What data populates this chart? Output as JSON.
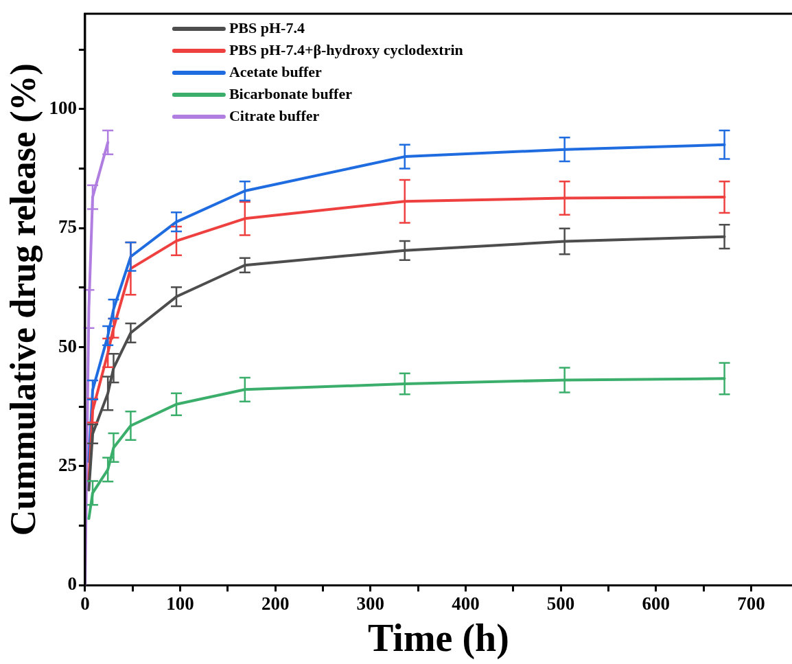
{
  "chart_data": {
    "type": "line",
    "xlabel": "Time (h)",
    "ylabel": "Cummulative drug release (%)",
    "x": [
      4,
      8,
      24,
      30,
      48,
      96,
      168,
      336,
      504,
      672
    ],
    "xlim": [
      0,
      743
    ],
    "xticks": [
      0,
      {
        "value": 50,
        "label": null
      },
      100,
      {
        "value": 150,
        "label": null
      },
      200,
      {
        "value": 250,
        "label": null
      },
      300,
      {
        "value": 350,
        "label": null
      },
      400,
      {
        "value": 450,
        "label": null
      },
      500,
      {
        "value": 550,
        "label": null
      },
      600,
      {
        "value": 650,
        "label": null
      },
      700
    ],
    "ylim": [
      0,
      120
    ],
    "yticks": [
      0,
      {
        "value": 12.5,
        "label": null
      },
      25,
      {
        "value": 37.5,
        "label": null
      },
      50,
      {
        "value": 62.5,
        "label": null
      },
      75,
      {
        "value": 87.5,
        "label": null
      },
      100,
      {
        "value": 112.5,
        "label": null
      }
    ],
    "series": [
      {
        "name": "PBS pH-7.4",
        "color": "#4d4d4d",
        "values": [
          20,
          31.8,
          40.3,
          45.6,
          53,
          60.6,
          67.2,
          70.3,
          72.2,
          73.2
        ],
        "errors": [
          null,
          2,
          3.5,
          3,
          2,
          2,
          1.5,
          2,
          2.7,
          2.5
        ]
      },
      {
        "name": "PBS pH-7.4+β-hydroxy cyclodextrin",
        "color": "#ef4040",
        "values": [
          22,
          36.7,
          48.8,
          54,
          66.5,
          72.3,
          77,
          80.6,
          81.3,
          81.5
        ],
        "errors": [
          null,
          2.5,
          3,
          2,
          5.5,
          3,
          3.5,
          4.5,
          3.5,
          3.3
        ]
      },
      {
        "name": "Acetate buffer",
        "color": "#1f6be0",
        "values": [
          26,
          41,
          52.4,
          58,
          69,
          76.3,
          82.8,
          90,
          91.5,
          92.5
        ],
        "errors": [
          null,
          2,
          2,
          2,
          3,
          2,
          2,
          2.5,
          2.5,
          3
        ]
      },
      {
        "name": "Bicarbonate buffer",
        "color": "#3aae6a",
        "values": [
          14,
          19.4,
          24.3,
          28.9,
          33.5,
          38,
          41.1,
          42.3,
          43.1,
          43.4
        ],
        "errors": [
          null,
          2.5,
          2.5,
          3,
          3,
          2.3,
          2.5,
          2.2,
          2.6,
          3.3
        ]
      },
      {
        "name": "Citrate buffer",
        "color": "#b07ee0",
        "x": [
          0,
          4,
          8,
          24
        ],
        "values": [
          0,
          58,
          81.5,
          93
        ],
        "errors": [
          null,
          4,
          2.5,
          2.5
        ]
      }
    ],
    "legend": "top left",
    "grid": false,
    "marker": "none",
    "line_style": "solid"
  }
}
